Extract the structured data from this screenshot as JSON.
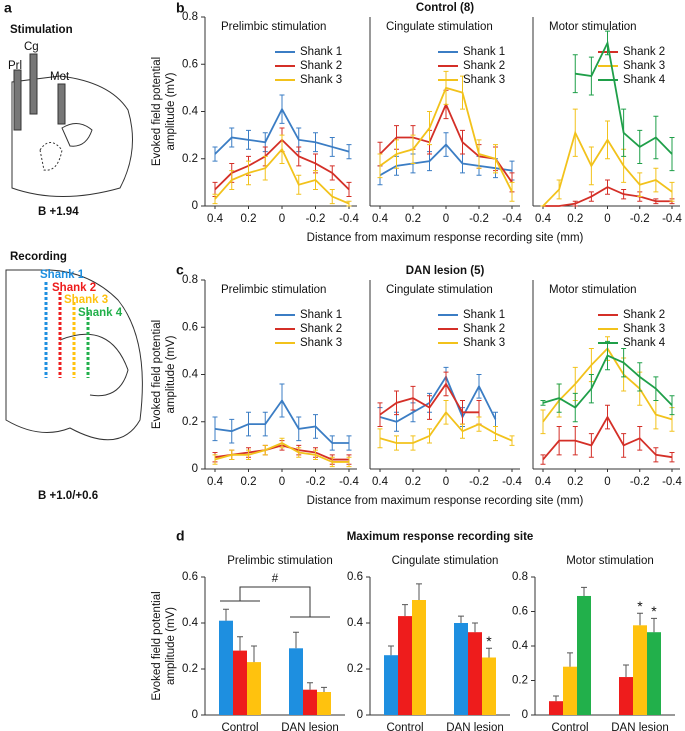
{
  "panel_labels": [
    "a",
    "b",
    "c",
    "d"
  ],
  "panel_a": {
    "stimulation": "Stimulation",
    "electrodes": [
      "Prl",
      "Cg",
      "Mot"
    ],
    "stimulation_coord": "B +1.94",
    "recording": "Recording",
    "shanks": [
      "Shank 1",
      "Shank 2",
      "Shank 3",
      "Shank 4"
    ],
    "recording_coord": "B +1.0/+0.6"
  },
  "chart_data": [
    {
      "type": "line",
      "title": "Prelimbic stimulation",
      "ylabel": [
        "Evoked field potential",
        "amplitude (mV)"
      ],
      "x": [
        0.4,
        0.3,
        0.2,
        0.1,
        0,
        -0.1,
        -0.2,
        -0.3,
        -0.4
      ],
      "xlim": [
        0.4,
        -0.4
      ],
      "xticks": [
        0.4,
        0.2,
        0,
        -0.2,
        -0.4
      ],
      "ylim": [
        0,
        0.8
      ],
      "yticks": [
        0,
        0.2,
        0.4,
        0.6,
        0.8
      ],
      "legend": "upper right",
      "series": [
        {
          "name": "Shank 1",
          "color": "#3b7dc4",
          "values": [
            0.22,
            0.29,
            0.28,
            0.27,
            0.41,
            0.28,
            0.27,
            0.25,
            0.23
          ],
          "errors": [
            0.03,
            0.04,
            0.04,
            0.04,
            0.06,
            0.05,
            0.04,
            0.04,
            0.03
          ]
        },
        {
          "name": "Shank 2",
          "color": "#d42f27",
          "values": [
            0.07,
            0.14,
            0.17,
            0.21,
            0.28,
            0.21,
            0.18,
            0.14,
            0.07
          ],
          "errors": [
            0.03,
            0.04,
            0.04,
            0.04,
            0.05,
            0.04,
            0.04,
            0.03,
            0.03
          ]
        },
        {
          "name": "Shank 3",
          "color": "#f2c21b",
          "values": [
            0.03,
            0.11,
            0.14,
            0.16,
            0.24,
            0.09,
            0.11,
            0.04,
            0.01
          ],
          "errors": [
            0.02,
            0.04,
            0.05,
            0.05,
            0.06,
            0.04,
            0.04,
            0.03,
            0.01
          ]
        }
      ]
    },
    {
      "type": "line",
      "title": "Cingulate stimulation",
      "suptitle": "Control (8)",
      "xlabel": "Distance from maximum response recording site (mm)",
      "x": [
        0.4,
        0.3,
        0.2,
        0.1,
        0,
        -0.1,
        -0.2,
        -0.3,
        -0.4
      ],
      "xlim": [
        0.4,
        -0.4
      ],
      "xticks": [
        0.4,
        0.2,
        0,
        -0.2,
        -0.4
      ],
      "ylim": [
        0,
        0.8
      ],
      "legend": "upper right",
      "series": [
        {
          "name": "Shank 1",
          "color": "#3b7dc4",
          "values": [
            0.13,
            0.17,
            0.18,
            0.19,
            0.26,
            0.18,
            0.17,
            0.16,
            0.15
          ],
          "errors": [
            0.04,
            0.04,
            0.04,
            0.04,
            0.05,
            0.04,
            0.04,
            0.04,
            0.04
          ]
        },
        {
          "name": "Shank 2",
          "color": "#d42f27",
          "values": [
            0.22,
            0.29,
            0.29,
            0.27,
            0.43,
            0.27,
            0.21,
            0.2,
            0.1
          ],
          "errors": [
            0.05,
            0.05,
            0.05,
            0.05,
            0.06,
            0.05,
            0.05,
            0.05,
            0.04
          ]
        },
        {
          "name": "Shank 3",
          "color": "#f2c21b",
          "values": [
            0.17,
            0.22,
            0.24,
            0.33,
            0.5,
            0.48,
            0.22,
            0.2,
            0.06
          ],
          "errors": [
            0.05,
            0.06,
            0.06,
            0.07,
            0.07,
            0.07,
            0.06,
            0.06,
            0.04
          ]
        }
      ]
    },
    {
      "type": "line",
      "title": "Motor stimulation",
      "x": [
        0.4,
        0.3,
        0.2,
        0.1,
        0,
        -0.1,
        -0.2,
        -0.3,
        -0.4
      ],
      "xlim": [
        0.4,
        -0.4
      ],
      "xticks": [
        0.4,
        0.2,
        0,
        -0.2,
        -0.4
      ],
      "ylim": [
        0,
        0.8
      ],
      "legend": "upper right",
      "series": [
        {
          "name": "Shank 2",
          "color": "#d42f27",
          "values": [
            0,
            0,
            0.01,
            0.04,
            0.08,
            0.05,
            0.04,
            0.02,
            0.02
          ],
          "errors": [
            0,
            0,
            0.01,
            0.02,
            0.03,
            0.02,
            0.02,
            0.01,
            0.01
          ]
        },
        {
          "name": "Shank 3",
          "color": "#f2c21b",
          "values": [
            0,
            0.07,
            0.31,
            0.17,
            0.28,
            0.17,
            0.09,
            0.11,
            0.06
          ],
          "errors": [
            0,
            0.04,
            0.1,
            0.08,
            0.08,
            0.07,
            0.05,
            0.05,
            0.04
          ]
        },
        {
          "name": "Shank 4",
          "color": "#1f9f49",
          "values": [
            null,
            null,
            0.56,
            0.55,
            0.69,
            0.31,
            0.25,
            0.29,
            0.22
          ],
          "errors": [
            null,
            null,
            0.08,
            0.08,
            0.05,
            0.1,
            0.07,
            0.09,
            0.07
          ]
        }
      ]
    },
    {
      "type": "line",
      "title": "Prelimbic stimulation",
      "ylabel": [
        "Evoked field potential",
        "amplitude (mV)"
      ],
      "x": [
        0.4,
        0.3,
        0.2,
        0.1,
        0,
        -0.1,
        -0.2,
        -0.3,
        -0.4
      ],
      "xlim": [
        0.4,
        -0.4
      ],
      "xticks": [
        0.4,
        0.2,
        0,
        -0.2,
        -0.4
      ],
      "ylim": [
        0,
        0.8
      ],
      "yticks": [
        0,
        0.2,
        0.4,
        0.6,
        0.8
      ],
      "legend": "upper right",
      "series": [
        {
          "name": "Shank 1",
          "color": "#3b7dc4",
          "values": [
            0.17,
            0.16,
            0.19,
            0.19,
            0.29,
            0.17,
            0.18,
            0.11,
            0.11
          ],
          "errors": [
            0.05,
            0.05,
            0.05,
            0.05,
            0.07,
            0.05,
            0.05,
            0.03,
            0.03
          ]
        },
        {
          "name": "Shank 2",
          "color": "#d42f27",
          "values": [
            0.05,
            0.06,
            0.07,
            0.08,
            0.1,
            0.08,
            0.07,
            0.04,
            0.04
          ],
          "errors": [
            0.02,
            0.02,
            0.02,
            0.02,
            0.02,
            0.02,
            0.02,
            0.02,
            0.02
          ]
        },
        {
          "name": "Shank 3",
          "color": "#f2c21b",
          "values": [
            0.04,
            0.06,
            0.06,
            0.08,
            0.11,
            0.07,
            0.06,
            0.03,
            0.03
          ],
          "errors": [
            0.02,
            0.02,
            0.02,
            0.02,
            0.02,
            0.02,
            0.02,
            0.02,
            0.02
          ]
        }
      ]
    },
    {
      "type": "line",
      "title": "Cingulate stimulation",
      "suptitle": "DAN lesion (5)",
      "xlabel": "Distance from maximum response recording site (mm)",
      "x": [
        0.4,
        0.3,
        0.2,
        0.1,
        0,
        -0.1,
        -0.2,
        -0.3,
        -0.4
      ],
      "xlim": [
        0.4,
        -0.4
      ],
      "xticks": [
        0.4,
        0.2,
        0,
        -0.2,
        -0.4
      ],
      "ylim": [
        0,
        0.8
      ],
      "legend": "upper right",
      "series": [
        {
          "name": "Shank 1",
          "color": "#3b7dc4",
          "values": [
            0.22,
            0.2,
            0.24,
            0.28,
            0.39,
            0.22,
            0.35,
            0.21,
            null
          ],
          "errors": [
            0.04,
            0.04,
            0.04,
            0.04,
            0.04,
            0.04,
            0.05,
            0.03,
            null
          ]
        },
        {
          "name": "Shank 2",
          "color": "#d42f27",
          "values": [
            0.23,
            0.28,
            0.3,
            0.26,
            0.36,
            0.24,
            0.24,
            null,
            null
          ],
          "errors": [
            0.05,
            0.05,
            0.05,
            0.05,
            0.05,
            0.05,
            0.05,
            null,
            null
          ]
        },
        {
          "name": "Shank 3",
          "color": "#f2c21b",
          "values": [
            0.13,
            0.11,
            0.11,
            0.14,
            0.24,
            0.16,
            0.19,
            0.15,
            0.12
          ],
          "errors": [
            0.04,
            0.03,
            0.03,
            0.03,
            0.05,
            0.03,
            0.03,
            0.03,
            0.02
          ]
        }
      ]
    },
    {
      "type": "line",
      "title": "Motor stimulation",
      "x": [
        0.4,
        0.3,
        0.2,
        0.1,
        0,
        -0.1,
        -0.2,
        -0.3,
        -0.4
      ],
      "xlim": [
        0.4,
        -0.4
      ],
      "xticks": [
        0.4,
        0.2,
        0,
        -0.2,
        -0.4
      ],
      "ylim": [
        0,
        0.8
      ],
      "legend": "upper right",
      "series": [
        {
          "name": "Shank 2",
          "color": "#d42f27",
          "values": [
            0.04,
            0.12,
            0.12,
            0.1,
            0.22,
            0.1,
            0.13,
            0.06,
            0.05
          ],
          "errors": [
            0.02,
            0.06,
            0.06,
            0.05,
            0.05,
            0.05,
            0.05,
            0.03,
            0.02
          ]
        },
        {
          "name": "Shank 3",
          "color": "#f2c21b",
          "values": [
            0.2,
            0.29,
            0.36,
            0.44,
            0.51,
            0.4,
            0.34,
            0.23,
            0.21
          ],
          "errors": [
            0.05,
            0.07,
            0.07,
            0.07,
            0.05,
            0.07,
            0.07,
            0.06,
            0.05
          ]
        },
        {
          "name": "Shank 4",
          "color": "#1f9f49",
          "values": [
            0.28,
            0.3,
            0.26,
            0.34,
            0.48,
            0.45,
            0.39,
            0.34,
            0.27
          ],
          "errors": [
            0.01,
            0.06,
            0.06,
            0.06,
            0.06,
            0.06,
            0.06,
            0.05,
            0.04
          ]
        }
      ]
    },
    {
      "type": "bar",
      "title": "Prelimbic stimulation",
      "ylabel": [
        "Evoked field potential",
        "amplitude (mV)"
      ],
      "categories": [
        "Control",
        "DAN lesion"
      ],
      "ylim": [
        0,
        0.6
      ],
      "yticks": [
        0,
        0.2,
        0.4,
        0.6
      ],
      "annotation": "#",
      "series": [
        {
          "color": "#1e8fe0",
          "values": [
            0.41,
            0.29
          ],
          "errors": [
            0.05,
            0.07
          ]
        },
        {
          "color": "#ee1c1c",
          "values": [
            0.28,
            0.11
          ],
          "errors": [
            0.06,
            0.03
          ]
        },
        {
          "color": "#ffc20e",
          "values": [
            0.23,
            0.1
          ],
          "errors": [
            0.07,
            0.02
          ]
        }
      ]
    },
    {
      "type": "bar",
      "title": "Cingulate stimulation",
      "suptitle": "Maximum response recording site",
      "categories": [
        "Control",
        "DAN lesion"
      ],
      "ylim": [
        0,
        0.6
      ],
      "yticks": [
        0,
        0.2,
        0.4,
        0.6
      ],
      "series": [
        {
          "color": "#1e8fe0",
          "values": [
            0.26,
            0.4
          ],
          "errors": [
            0.04,
            0.03
          ]
        },
        {
          "color": "#ee1c1c",
          "values": [
            0.43,
            0.36
          ],
          "errors": [
            0.05,
            0.04
          ]
        },
        {
          "color": "#ffc20e",
          "values": [
            0.5,
            0.25
          ],
          "errors": [
            0.07,
            0.04
          ],
          "stars": [
            null,
            "*"
          ]
        }
      ]
    },
    {
      "type": "bar",
      "title": "Motor stimulation",
      "categories": [
        "Control",
        "DAN lesion"
      ],
      "ylim": [
        0,
        0.8
      ],
      "yticks": [
        0,
        0.2,
        0.4,
        0.6,
        0.8
      ],
      "series": [
        {
          "color": "#ee1c1c",
          "values": [
            0.08,
            0.22
          ],
          "errors": [
            0.03,
            0.07
          ]
        },
        {
          "color": "#ffc20e",
          "values": [
            0.28,
            0.52
          ],
          "errors": [
            0.08,
            0.07
          ],
          "stars": [
            null,
            "*"
          ]
        },
        {
          "color": "#22b04b",
          "values": [
            0.69,
            0.48
          ],
          "errors": [
            0.05,
            0.08
          ],
          "stars": [
            null,
            "*"
          ]
        }
      ]
    }
  ]
}
